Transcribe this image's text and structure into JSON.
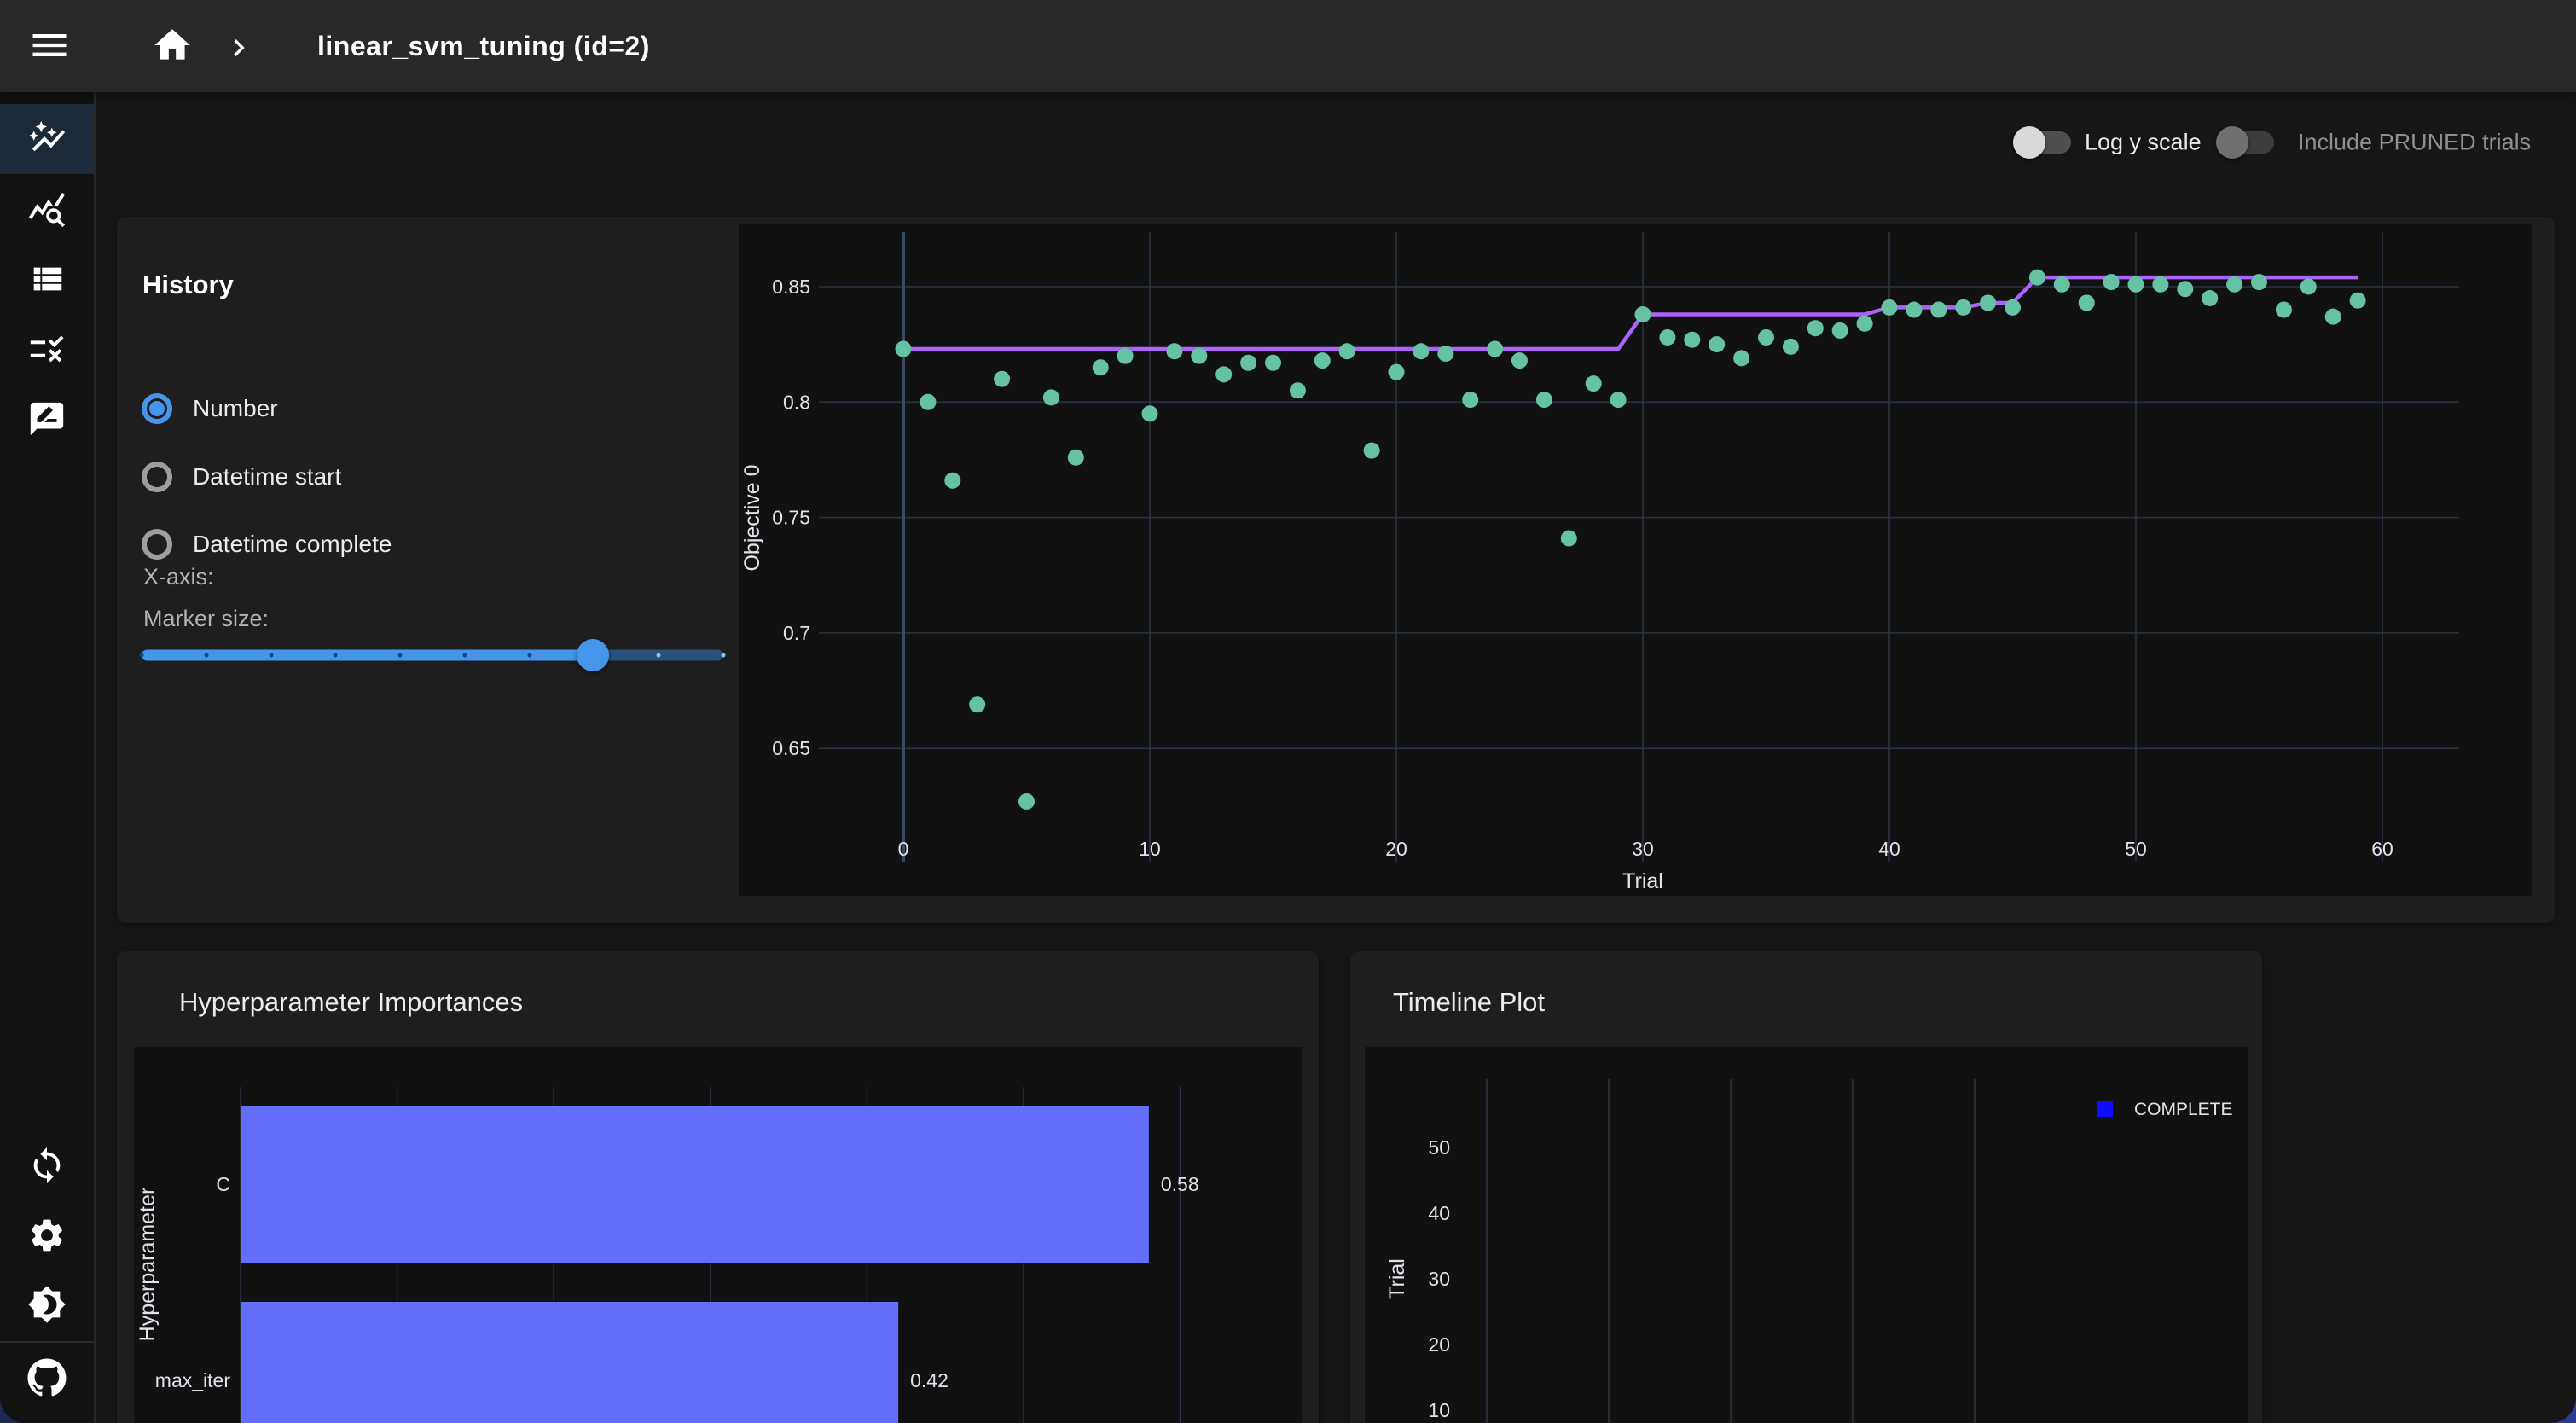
{
  "app_bar": {
    "title": "linear_svm_tuning (id=2)",
    "icons": [
      "menu-icon",
      "home-icon",
      "chevron-right-icon"
    ]
  },
  "toolbar": {
    "log_y_label": "Log y scale",
    "log_y_on": false,
    "pruned_label": "Include PRUNED trials",
    "pruned_on": false,
    "pruned_disabled": true
  },
  "sidebar": {
    "top_icons": [
      "auto-graph-icon",
      "query-stats-icon",
      "view-list-icon",
      "rule-icon",
      "rate-review-icon"
    ],
    "selected_index": 0,
    "bottom_icons": [
      "sync-icon",
      "settings-gear-icon",
      "dark-mode-icon",
      "github-icon"
    ]
  },
  "history_card": {
    "title": "History",
    "x_axis_label": "X-axis:",
    "radios": [
      {
        "label": "Number",
        "selected": true
      },
      {
        "label": "Datetime start",
        "selected": false
      },
      {
        "label": "Datetime complete",
        "selected": false
      }
    ],
    "marker_size_label": "Marker size:",
    "marker_size": {
      "min": 1,
      "max": 10,
      "value": 8
    }
  },
  "colors": {
    "accent_blue": "#4596ea",
    "scatter_teal": "#66c2a5",
    "best_line_purple": "#ab63fa",
    "bar_indigo": "#636efa",
    "complete_blue": "#0d0dff",
    "grid": "#283442",
    "zeroline": "#344b63",
    "plot_paper": "#111111",
    "tick_text": "#dfe3ea"
  },
  "chart_data": [
    {
      "id": "history",
      "type": "scatter",
      "xlabel": "Trial",
      "ylabel": "Objective 0",
      "x_ticks": [
        0,
        10,
        20,
        30,
        40,
        50,
        60
      ],
      "y_ticks": [
        0.65,
        0.7,
        0.75,
        0.8,
        0.85
      ],
      "ylim": [
        0.615,
        0.872
      ],
      "xlim": [
        -3.5,
        63
      ],
      "grid": true,
      "series": [
        {
          "name": "objective-points",
          "style": "markers",
          "x": [
            0,
            1,
            2,
            3,
            4,
            5,
            6,
            7,
            8,
            9,
            10,
            11,
            12,
            13,
            14,
            15,
            16,
            17,
            18,
            19,
            20,
            21,
            22,
            23,
            24,
            25,
            26,
            27,
            28,
            29,
            30,
            31,
            32,
            33,
            34,
            35,
            36,
            37,
            38,
            39,
            40,
            41,
            42,
            43,
            44,
            45,
            46,
            47,
            48,
            49,
            50,
            51,
            52,
            53,
            54,
            55,
            56,
            57,
            58,
            59
          ],
          "y": [
            0.823,
            0.8,
            0.766,
            0.669,
            0.81,
            0.627,
            0.802,
            0.776,
            0.815,
            0.82,
            0.795,
            0.822,
            0.82,
            0.812,
            0.817,
            0.817,
            0.805,
            0.818,
            0.822,
            0.779,
            0.813,
            0.822,
            0.821,
            0.801,
            0.823,
            0.818,
            0.801,
            0.741,
            0.808,
            0.801,
            0.838,
            0.828,
            0.827,
            0.825,
            0.819,
            0.828,
            0.824,
            0.832,
            0.831,
            0.834,
            0.841,
            0.84,
            0.84,
            0.841,
            0.843,
            0.841,
            0.854,
            0.851,
            0.843,
            0.852,
            0.851,
            0.851,
            0.849,
            0.845,
            0.851,
            0.852,
            0.84,
            0.85,
            0.837,
            0.844
          ]
        },
        {
          "name": "best-value-line",
          "style": "line",
          "derive": "cummax-of-objective-points"
        }
      ]
    },
    {
      "id": "importances",
      "type": "bar",
      "title": "Hyperparameter Importances",
      "ylabel": "Hyperparameter",
      "categories": [
        "C",
        "max_iter"
      ],
      "values": [
        0.58,
        0.42
      ],
      "value_labels": [
        "0.58",
        "0.42"
      ],
      "x_gridline_values": [
        0,
        0.1,
        0.2,
        0.3,
        0.4,
        0.5,
        0.6
      ],
      "grid": true
    },
    {
      "id": "timeline",
      "type": "timeline",
      "title": "Timeline Plot",
      "ylabel": "Trial",
      "y_ticks": [
        50,
        40,
        30,
        20,
        10
      ],
      "x_gridline_count": 5,
      "legend": [
        {
          "label": "COMPLETE",
          "color": "#0d0dff"
        }
      ],
      "legend_position": "right"
    }
  ]
}
